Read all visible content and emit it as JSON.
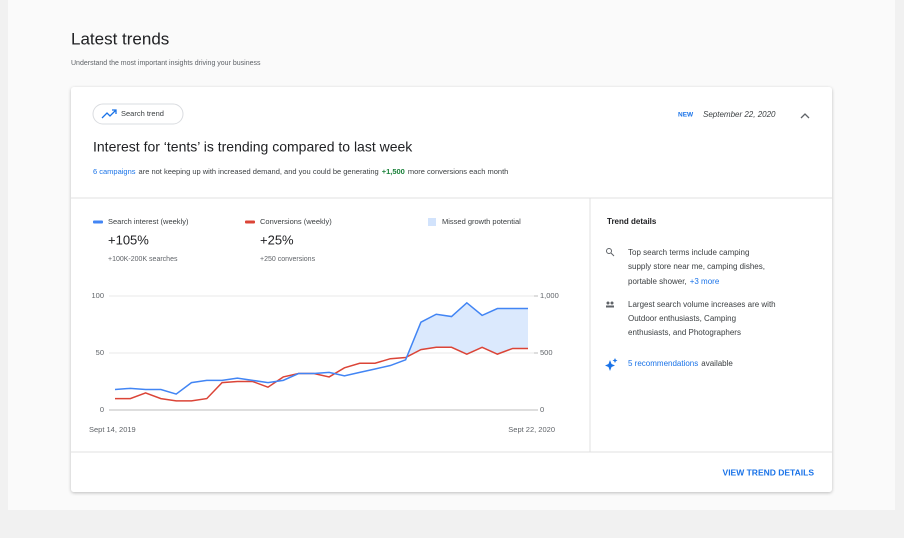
{
  "header": {
    "title": "Latest trends",
    "subtitle": "Understand the most important insights driving your business"
  },
  "card": {
    "chip": "Search trend",
    "badge": "NEW",
    "date": "September 22, 2020",
    "headline": "Interest for ‘tents’ is trending compared to last week",
    "summary": {
      "link": "6 campaigns",
      "text": "are not keeping up with increased demand, and you could be generating",
      "highlight": "+1,500",
      "end": "more conversions each month"
    },
    "details": {
      "title": "Trend details",
      "items": [
        {
          "lines": [
            "Top search terms include camping",
            "supply store near me, camping dishes,",
            "portable shower,"
          ],
          "link": "+3 more"
        },
        {
          "lines": [
            "Largest search volume increases are with",
            "Outdoor enthusiasts, Camping",
            "enthusiasts, and Photographers"
          ]
        },
        {
          "link": "5 recommendations",
          "lines": [
            "available"
          ]
        }
      ]
    },
    "button": "VIEW TREND DETAILS"
  },
  "chart_data": {
    "type": "line",
    "categories": [
      "Sept 14, 2019",
      null,
      null,
      null,
      null,
      null,
      null,
      null,
      null,
      null,
      null,
      null,
      null,
      null,
      null,
      null,
      null,
      null,
      null,
      null,
      null,
      null,
      null,
      null,
      null,
      null,
      null,
      "Sept 22, 2020"
    ],
    "series": [
      {
        "name": "Search interest (weekly)",
        "color": "#4285f4",
        "stat": "+105%",
        "note": "+100K-200K searches",
        "values": [
          18,
          19,
          18,
          18,
          14,
          24,
          26,
          26,
          28,
          26,
          24,
          26,
          32,
          32,
          33,
          30,
          33,
          36,
          39,
          44,
          77,
          84,
          82,
          94,
          83,
          89,
          89,
          89
        ]
      },
      {
        "name": "Conversions (weekly)",
        "color": "#db4437",
        "axis": "y2",
        "stat": "+25%",
        "note": "+250 conversions",
        "values": [
          100,
          100,
          150,
          100,
          80,
          80,
          100,
          240,
          250,
          250,
          200,
          290,
          320,
          320,
          290,
          370,
          410,
          410,
          450,
          460,
          530,
          550,
          550,
          490,
          550,
          490,
          540,
          540
        ]
      }
    ],
    "area": {
      "name": "Missed growth potential",
      "color": "#d2e3fc"
    },
    "ylim": [
      0,
      100
    ],
    "yticks": [
      0,
      50,
      100
    ],
    "y2lim": [
      0,
      1000
    ],
    "y2ticks": [
      0,
      500,
      {
        "value": 1000,
        "label": "1,000"
      }
    ],
    "grid": true
  }
}
